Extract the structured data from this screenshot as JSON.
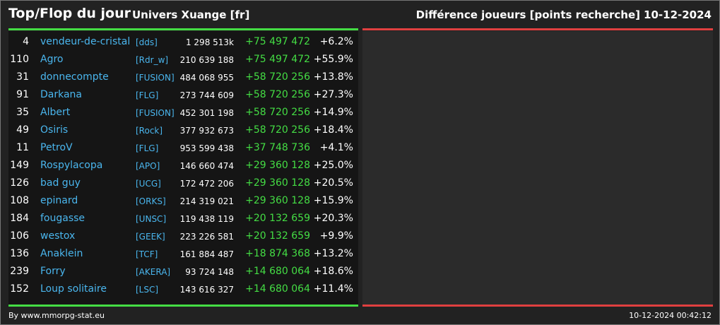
{
  "header": {
    "title": "Top/Flop du jour",
    "universe": "Univers Xuange [fr]",
    "metric": "Différence joueurs [points recherche]",
    "date": "10-12-2024"
  },
  "colors": {
    "top_accent": "#44dd44",
    "flop_accent": "#e04040",
    "link": "#4ab6ee"
  },
  "top": [
    {
      "rank": "4",
      "name": "vendeur-de-cristal",
      "alliance": "[dds]",
      "points": "1 298 513k",
      "diff": "+75 497 472",
      "pct": "+6.2%"
    },
    {
      "rank": "110",
      "name": "Agro",
      "alliance": "[Rdr_w]",
      "points": "210 639 188",
      "diff": "+75 497 472",
      "pct": "+55.9%"
    },
    {
      "rank": "31",
      "name": "donnecompte",
      "alliance": "[FUSION]",
      "points": "484 068 955",
      "diff": "+58 720 256",
      "pct": "+13.8%"
    },
    {
      "rank": "91",
      "name": "Darkana",
      "alliance": "[FLG]",
      "points": "273 744 609",
      "diff": "+58 720 256",
      "pct": "+27.3%"
    },
    {
      "rank": "35",
      "name": "Albert",
      "alliance": "[FUSION]",
      "points": "452 301 198",
      "diff": "+58 720 256",
      "pct": "+14.9%"
    },
    {
      "rank": "49",
      "name": "Osiris",
      "alliance": "[Rock]",
      "points": "377 932 673",
      "diff": "+58 720 256",
      "pct": "+18.4%"
    },
    {
      "rank": "11",
      "name": "PetroV",
      "alliance": "[FLG]",
      "points": "953 599 438",
      "diff": "+37 748 736",
      "pct": "+4.1%"
    },
    {
      "rank": "149",
      "name": "Rospylacopa",
      "alliance": "[APO]",
      "points": "146 660 474",
      "diff": "+29 360 128",
      "pct": "+25.0%"
    },
    {
      "rank": "126",
      "name": "bad guy",
      "alliance": "[UCG]",
      "points": "172 472 206",
      "diff": "+29 360 128",
      "pct": "+20.5%"
    },
    {
      "rank": "108",
      "name": "epinard",
      "alliance": "[ORKS]",
      "points": "214 319 021",
      "diff": "+29 360 128",
      "pct": "+15.9%"
    },
    {
      "rank": "184",
      "name": "fougasse",
      "alliance": "[UNSC]",
      "points": "119 438 119",
      "diff": "+20 132 659",
      "pct": "+20.3%"
    },
    {
      "rank": "106",
      "name": "westox",
      "alliance": "[GEEK]",
      "points": "223 226 581",
      "diff": "+20 132 659",
      "pct": "+9.9%"
    },
    {
      "rank": "136",
      "name": "Anaklein",
      "alliance": "[TCF]",
      "points": "161 884 487",
      "diff": "+18 874 368",
      "pct": "+13.2%"
    },
    {
      "rank": "239",
      "name": "Forry",
      "alliance": "[AKERA]",
      "points": "93 724 148",
      "diff": "+14 680 064",
      "pct": "+18.6%"
    },
    {
      "rank": "152",
      "name": "Loup solitaire",
      "alliance": "[LSC]",
      "points": "143 616 327",
      "diff": "+14 680 064",
      "pct": "+11.4%"
    }
  ],
  "footer": {
    "credit": "By www.mmorpg-stat.eu",
    "timestamp": "10-12-2024 00:42:12"
  }
}
